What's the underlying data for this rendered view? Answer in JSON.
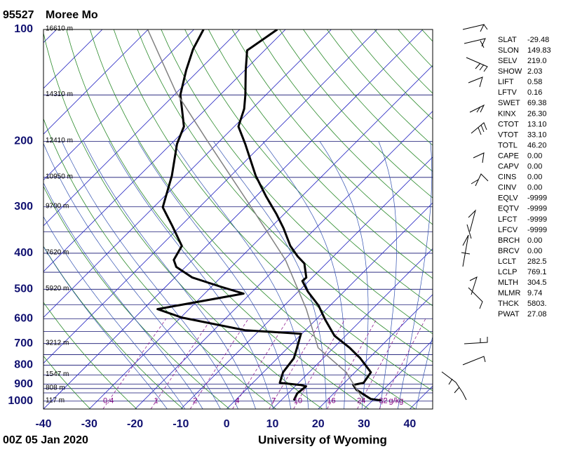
{
  "chart_data": {
    "type": "skewt",
    "station_id": "95527",
    "title": "Moree Mo",
    "time": "00Z 05 Jan 2020",
    "source": "University of Wyoming",
    "log_scale": true,
    "xlim": [
      -40,
      45
    ],
    "ylim": [
      1050,
      100
    ],
    "xticks": [
      -40,
      -30,
      -20,
      -10,
      0,
      10,
      20,
      30,
      40
    ],
    "yticks": [
      100,
      200,
      300,
      400,
      500,
      600,
      700,
      800,
      900,
      1000
    ],
    "ygrid": [
      100,
      150,
      200,
      250,
      300,
      350,
      400,
      450,
      500,
      550,
      600,
      650,
      700,
      750,
      800,
      850,
      900,
      925,
      950,
      1000
    ],
    "heights": [
      {
        "value": 100,
        "label": "16610 m"
      },
      {
        "value": 150,
        "label": "14310 m"
      },
      {
        "value": 200,
        "label": "12410 m"
      },
      {
        "value": 250,
        "label": "10950 m"
      },
      {
        "value": 300,
        "label": "9700 m"
      },
      {
        "value": 400,
        "label": "7620 m"
      },
      {
        "value": 500,
        "label": "5920 m"
      },
      {
        "value": 700,
        "label": "3212 m"
      },
      {
        "value": 850,
        "label": "1547 m"
      },
      {
        "value": 925,
        "label": "808 m"
      },
      {
        "value": 1000,
        "label": "117 m"
      }
    ],
    "mixing_ratios": [
      0.4,
      1,
      2,
      4,
      7,
      10,
      16,
      24,
      32
    ],
    "mixing_ratio_unit": "g/kg",
    "series": [
      {
        "color": "#000000",
        "pressure": [
          100,
          113.9,
          128.7,
          149.9,
          163.5,
          182.4,
          203.3,
          247.4,
          281.8,
          314.2,
          342.8,
          382.2,
          407.9,
          426.1,
          464.9,
          475.1,
          507.2,
          553.3,
          603.5,
          667.3,
          718.4,
          766.6,
          836.5,
          893.0,
          904.7,
          932.7,
          986.9,
          995.5
        ],
        "values": [
          -71.8,
          -73.8,
          -69.8,
          -64.5,
          -61.7,
          -59.1,
          -53.8,
          -44.6,
          -37.7,
          -31.6,
          -27.0,
          -21.7,
          -17.8,
          -14.8,
          -11.3,
          -11.4,
          -7.9,
          -2.5,
          2.0,
          7.6,
          13.5,
          18.1,
          23.5,
          24.2,
          22.4,
          24.2,
          29.3,
          31.9
        ]
      },
      {
        "color": "#000000",
        "pressure": [
          100,
          112.9,
          128.7,
          149.9,
          182.4,
          203.3,
          247.4,
          300.8,
          335.4,
          382.2,
          416.9,
          435.5,
          464.9,
          475.1,
          491.9,
          513.7,
          565.5,
          595.7,
          644.5,
          658.6,
          718.4,
          766.6,
          836.5,
          893.0,
          904.7,
          912.6,
          953.3,
          995.5
        ],
        "values": [
          -87.9,
          -85.9,
          -82.8,
          -78.7,
          -71.0,
          -68.7,
          -62.9,
          -58.0,
          -52.2,
          -45.4,
          -44.1,
          -42.0,
          -36.2,
          -33.1,
          -28.1,
          -21.5,
          -36.9,
          -29.8,
          -13.2,
          -0.2,
          2.0,
          3.6,
          4.3,
          5.9,
          10.9,
          12.4,
          12.0,
          12.8
        ]
      },
      {
        "color": "#808080",
        "pressure": [
          1000,
          836.5,
          718.4,
          565.5,
          416.9,
          307.4,
          198.9,
          146.7,
          100
        ],
        "values": [
          28.3,
          18.1,
          6.6,
          -4.4,
          -19.7,
          -37.4,
          -62.9,
          -80.5,
          -100.1
        ]
      }
    ],
    "indices": [
      {
        "name": "SLAT",
        "value": "-29.48"
      },
      {
        "name": "SLON",
        "value": "149.83"
      },
      {
        "name": "SELV",
        "value": "219.0"
      },
      {
        "name": "SHOW",
        "value": "2.03"
      },
      {
        "name": "LIFT",
        "value": "0.58"
      },
      {
        "name": "LFTV",
        "value": "0.16"
      },
      {
        "name": "SWET",
        "value": "69.38"
      },
      {
        "name": "KINX",
        "value": "26.30"
      },
      {
        "name": "CTOT",
        "value": "13.10"
      },
      {
        "name": "VTOT",
        "value": "33.10"
      },
      {
        "name": "TOTL",
        "value": "46.20"
      },
      {
        "name": "CAPE",
        "value": "0.00"
      },
      {
        "name": "CAPV",
        "value": "0.00"
      },
      {
        "name": "CINS",
        "value": "0.00"
      },
      {
        "name": "CINV",
        "value": "0.00"
      },
      {
        "name": "EQLV",
        "value": "-9999"
      },
      {
        "name": "EQTV",
        "value": "-9999"
      },
      {
        "name": "LFCT",
        "value": "-9999"
      },
      {
        "name": "LFCV",
        "value": "-9999"
      },
      {
        "name": "BRCH",
        "value": "0.00"
      },
      {
        "name": "BRCV",
        "value": "0.00"
      },
      {
        "name": "LCLT",
        "value": "282.5"
      },
      {
        "name": "LCLP",
        "value": "769.1"
      },
      {
        "name": "MLTH",
        "value": "304.5"
      },
      {
        "name": "MLMR",
        "value": "9.74"
      },
      {
        "name": "THCK",
        "value": "5803."
      },
      {
        "name": "PWAT",
        "value": "27.08"
      }
    ]
  }
}
